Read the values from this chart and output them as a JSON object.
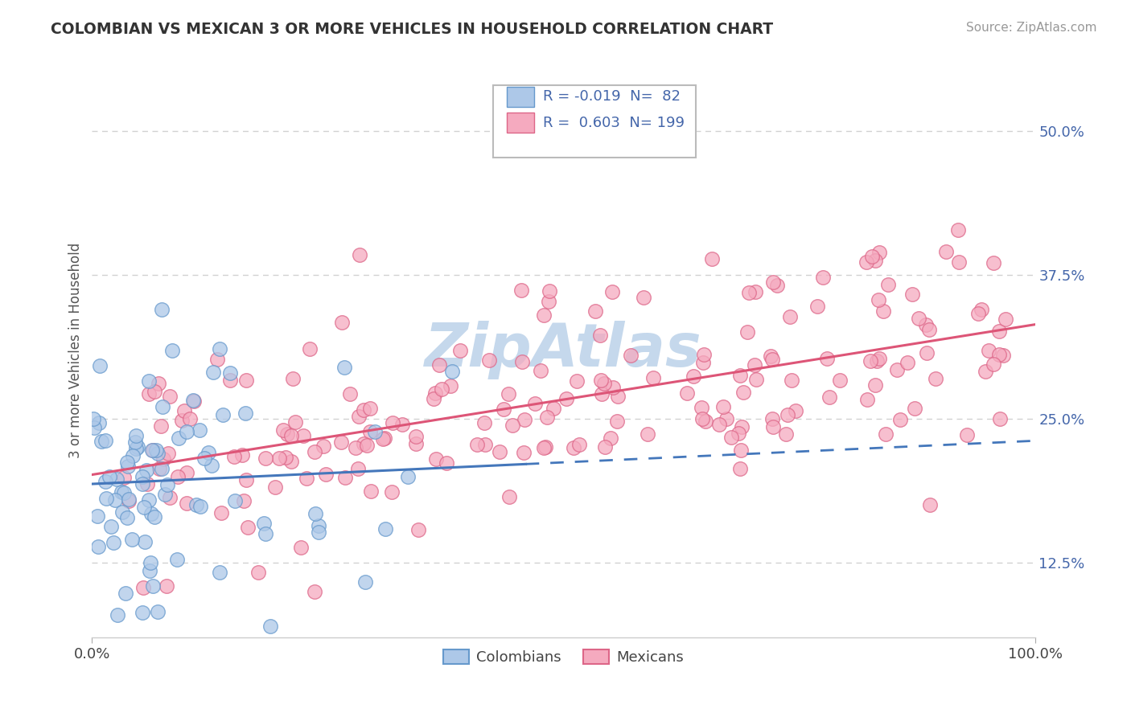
{
  "title": "COLOMBIAN VS MEXICAN 3 OR MORE VEHICLES IN HOUSEHOLD CORRELATION CHART",
  "source": "Source: ZipAtlas.com",
  "ylabel": "3 or more Vehicles in Household",
  "ytick_values": [
    0.125,
    0.25,
    0.375,
    0.5
  ],
  "legend_colombian_R": "-0.019",
  "legend_colombian_N": "82",
  "legend_mexican_R": "0.603",
  "legend_mexican_N": "199",
  "colombian_color": "#adc8e8",
  "mexican_color": "#f5aabf",
  "colombian_edge_color": "#6699cc",
  "mexican_edge_color": "#dd6688",
  "colombian_line_color": "#4477bb",
  "mexican_line_color": "#dd5577",
  "background_color": "#ffffff",
  "grid_color": "#cccccc",
  "watermark_text": "ZipAtlas",
  "watermark_color": "#c5d8ec",
  "title_color": "#333333",
  "source_color": "#999999",
  "legend_text_color": "#4466aa",
  "ytick_color": "#4466aa"
}
